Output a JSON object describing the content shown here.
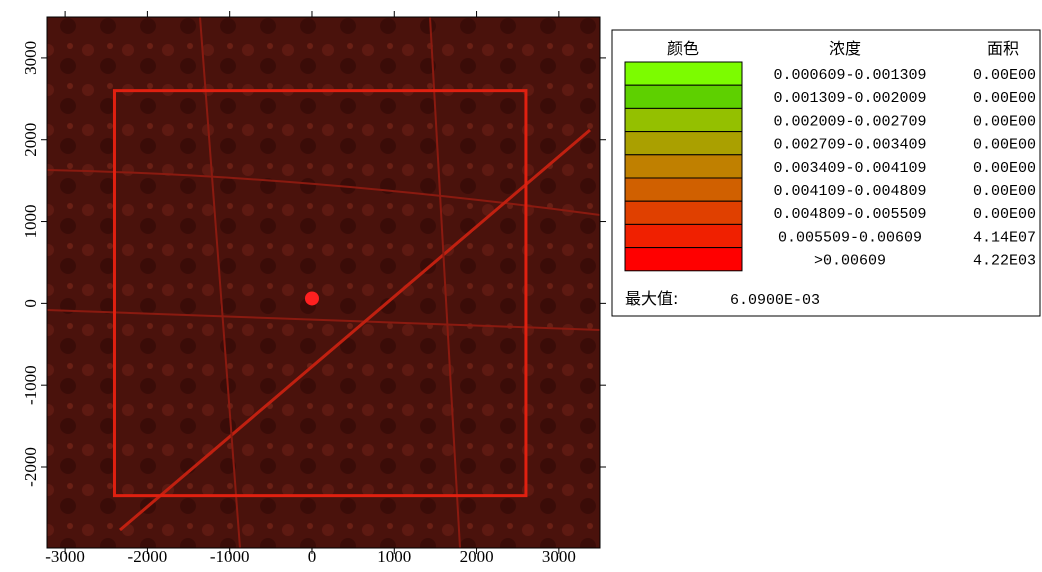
{
  "map": {
    "xlim": [
      -3220,
      3500
    ],
    "ylim": [
      -2990,
      3500
    ],
    "xticks": [
      -3000,
      -2000,
      -1000,
      0,
      1000,
      2000,
      3000
    ],
    "yticks": [
      -2000,
      -1000,
      0,
      1000,
      2000,
      3000
    ],
    "domain": {
      "x": [
        -2400,
        2600
      ],
      "y": [
        -2350,
        2600
      ]
    },
    "source": {
      "x": 0,
      "y": 60
    }
  },
  "legend": {
    "headers": [
      "颜色",
      "浓度",
      "面积"
    ],
    "rows": [
      {
        "color": "#7cfc00",
        "range": "0.000609-0.001309",
        "area": "0.00E00"
      },
      {
        "color": "#5ed000",
        "range": "0.001309-0.002009",
        "area": "0.00E00"
      },
      {
        "color": "#94c000",
        "range": "0.002009-0.002709",
        "area": "0.00E00"
      },
      {
        "color": "#aaa000",
        "range": "0.002709-0.003409",
        "area": "0.00E00"
      },
      {
        "color": "#c08000",
        "range": "0.003409-0.004109",
        "area": "0.00E00"
      },
      {
        "color": "#d06000",
        "range": "0.004109-0.004809",
        "area": "0.00E00"
      },
      {
        "color": "#e04000",
        "range": "0.004809-0.005509",
        "area": "0.00E00"
      },
      {
        "color": "#f02000",
        "range": "0.005509-0.00609",
        "area": "4.14E07"
      },
      {
        "color": "#ff0000",
        "range": ">0.00609",
        "area": "4.22E03"
      }
    ],
    "max_label": "最大值:",
    "max_value": "6.0900E-03"
  }
}
